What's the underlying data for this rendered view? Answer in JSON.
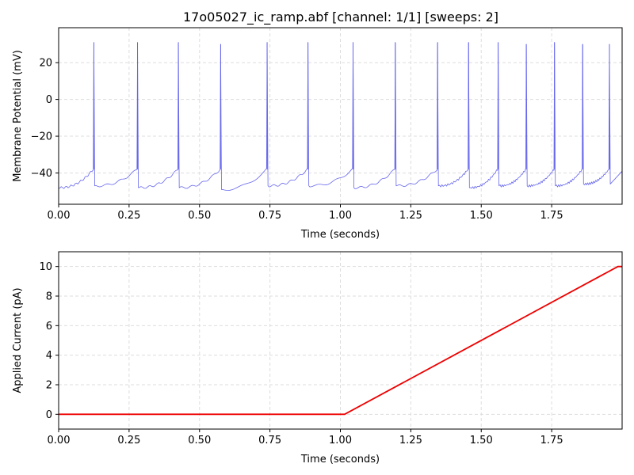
{
  "figure": {
    "title": "17o05027_ic_ramp.abf [channel: 1/1] [sweeps: 2]"
  },
  "chart_data": [
    {
      "type": "line",
      "title": "17o05027_ic_ramp.abf [channel: 1/1] [sweeps: 2]",
      "xlabel": "Time (seconds)",
      "ylabel": "Membrane Potential (mV)",
      "xlim": [
        0,
        2.0
      ],
      "ylim": [
        -57,
        39
      ],
      "x_ticks": [
        "0.00",
        "0.25",
        "0.50",
        "0.75",
        "1.00",
        "1.25",
        "1.50",
        "1.75"
      ],
      "x_tick_values": [
        0,
        0.25,
        0.5,
        0.75,
        1.0,
        1.25,
        1.5,
        1.75
      ],
      "y_ticks": [
        "−40",
        "−20",
        "0",
        "20"
      ],
      "y_tick_values": [
        -40,
        -20,
        0,
        20
      ],
      "grid": true,
      "series": [
        {
          "color": "#6666ee",
          "resting_mV": -48,
          "spike_threshold_mV": -38,
          "spikes": [
            {
              "t": 0.125,
              "peak": 31,
              "trough": -47
            },
            {
              "t": 0.28,
              "peak": 31,
              "trough": -48
            },
            {
              "t": 0.425,
              "peak": 31,
              "trough": -48
            },
            {
              "t": 0.575,
              "peak": 30,
              "trough": -49
            },
            {
              "t": 0.74,
              "peak": 31,
              "trough": -47
            },
            {
              "t": 0.885,
              "peak": 31,
              "trough": -47
            },
            {
              "t": 1.045,
              "peak": 31,
              "trough": -48
            },
            {
              "t": 1.195,
              "peak": 31,
              "trough": -47
            },
            {
              "t": 1.345,
              "peak": 31,
              "trough": -47
            },
            {
              "t": 1.455,
              "peak": 31,
              "trough": -48
            },
            {
              "t": 1.56,
              "peak": 31,
              "trough": -47
            },
            {
              "t": 1.66,
              "peak": 30,
              "trough": -47
            },
            {
              "t": 1.76,
              "peak": 31,
              "trough": -47
            },
            {
              "t": 1.86,
              "peak": 30,
              "trough": -46
            },
            {
              "t": 1.955,
              "peak": 30,
              "trough": -46
            }
          ]
        }
      ]
    },
    {
      "type": "line",
      "xlabel": "Time (seconds)",
      "ylabel": "Applied Current (pA)",
      "xlim": [
        0,
        2.0
      ],
      "ylim": [
        -1,
        11
      ],
      "x_ticks": [
        "0.00",
        "0.25",
        "0.50",
        "0.75",
        "1.00",
        "1.25",
        "1.50",
        "1.75"
      ],
      "x_tick_values": [
        0,
        0.25,
        0.5,
        0.75,
        1.0,
        1.25,
        1.5,
        1.75
      ],
      "y_ticks": [
        "0",
        "2",
        "4",
        "6",
        "8",
        "10"
      ],
      "y_tick_values": [
        0,
        2,
        4,
        6,
        8,
        10
      ],
      "grid": true,
      "series": [
        {
          "color": "#ee0000",
          "x": [
            0,
            1.015,
            1.985,
            2.0
          ],
          "y": [
            0,
            0,
            10,
            10
          ]
        }
      ]
    }
  ]
}
